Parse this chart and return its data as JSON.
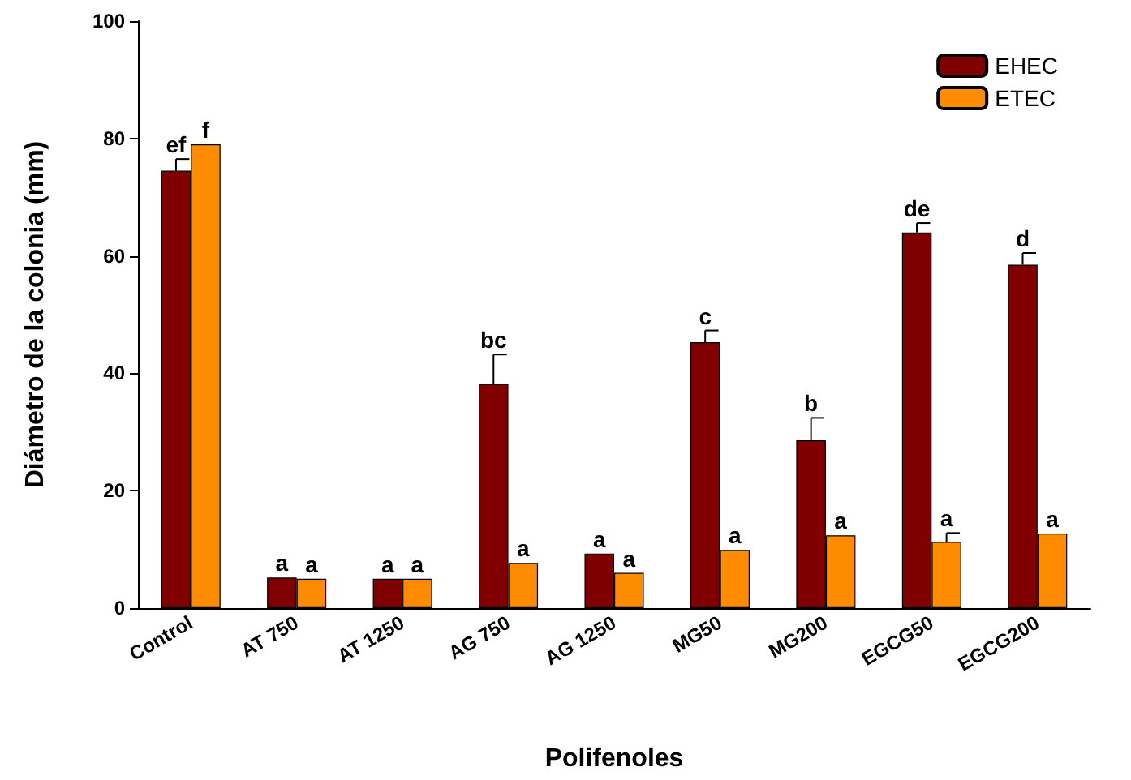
{
  "chart_data": {
    "type": "bar",
    "xlabel": "Polifenoles",
    "ylabel": "Diámetro de la colonia (mm)",
    "categories": [
      "Control",
      "AT 750",
      "AT 1250",
      "AG 750",
      "AG 1250",
      "MG50",
      "MG200",
      "EGCG50",
      "EGCG200"
    ],
    "series": [
      {
        "name": "EHEC",
        "color": "#800000",
        "values": [
          74.5,
          5.2,
          5,
          38.2,
          9.3,
          45.3,
          28.6,
          64,
          58.5
        ],
        "errors": [
          2,
          null,
          null,
          5,
          null,
          2,
          3.8,
          1.6,
          2
        ],
        "value_labels": [
          "ef",
          "a",
          "a",
          "bc",
          "a",
          "c",
          "b",
          "de",
          "d"
        ]
      },
      {
        "name": "ETEC",
        "color": "#ff8c00",
        "values": [
          79,
          5,
          5,
          7.7,
          6,
          9.9,
          12.4,
          11.3,
          12.7
        ],
        "errors": [
          null,
          null,
          null,
          null,
          null,
          null,
          null,
          1.5,
          null
        ],
        "value_labels": [
          "f",
          "a",
          "a",
          "a",
          "a",
          "a",
          "a",
          "a",
          "a"
        ]
      }
    ],
    "ylim": [
      0,
      100
    ],
    "yticks": [
      0,
      20,
      40,
      60,
      80,
      100
    ],
    "grid": false,
    "legend": "top right"
  }
}
